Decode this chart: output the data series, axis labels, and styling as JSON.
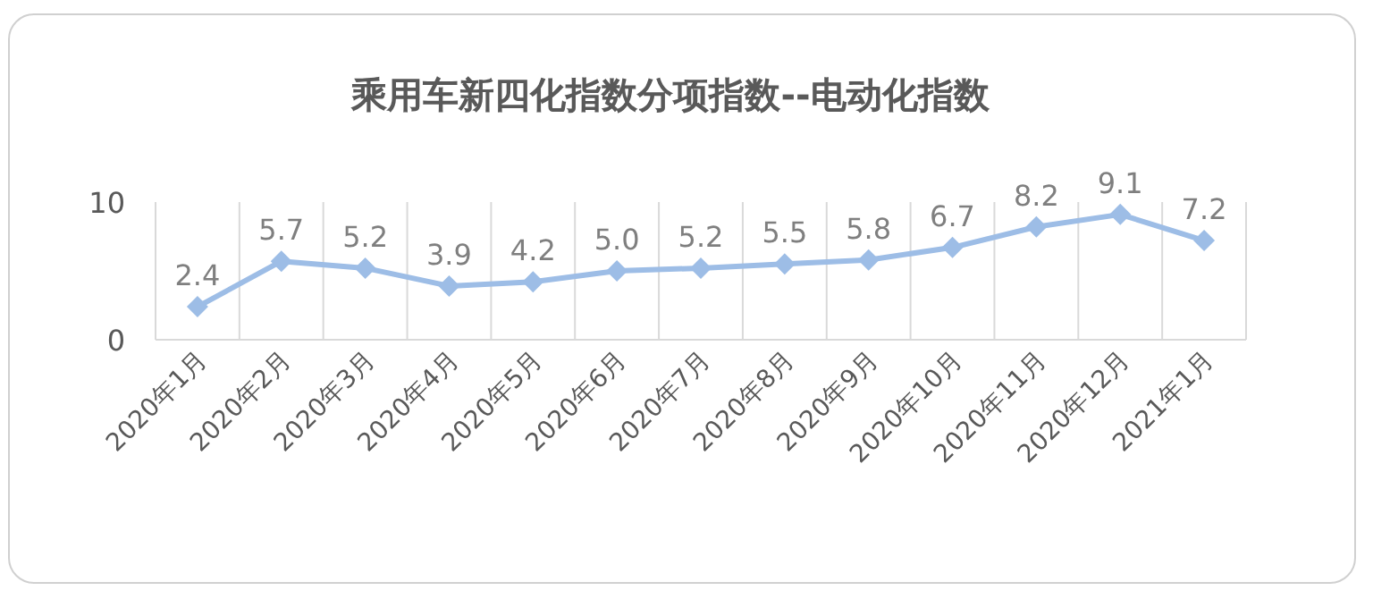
{
  "chart_data": {
    "type": "line",
    "title": "乘用车新四化指数分项指数--电动化指数",
    "categories": [
      "2020年1月",
      "2020年2月",
      "2020年3月",
      "2020年4月",
      "2020年5月",
      "2020年6月",
      "2020年7月",
      "2020年8月",
      "2020年9月",
      "2020年10月",
      "2020年11月",
      "2020年12月",
      "2021年1月"
    ],
    "series": [
      {
        "color": "#9dbde6",
        "values": [
          2.4,
          5.7,
          5.2,
          3.9,
          4.2,
          5.0,
          5.2,
          5.5,
          5.8,
          6.7,
          8.2,
          9.1,
          7.2
        ],
        "value_labels": [
          "2.4",
          "5.7",
          "5.2",
          "3.9",
          "4.2",
          "5.0",
          "5.2",
          "5.5",
          "5.8",
          "6.7",
          "8.2",
          "9.1",
          "7.2"
        ]
      }
    ],
    "ylim": [
      0,
      10
    ],
    "yticks": [
      0,
      10
    ],
    "grid": "x",
    "marker": "diamond",
    "line_style": "solid"
  }
}
